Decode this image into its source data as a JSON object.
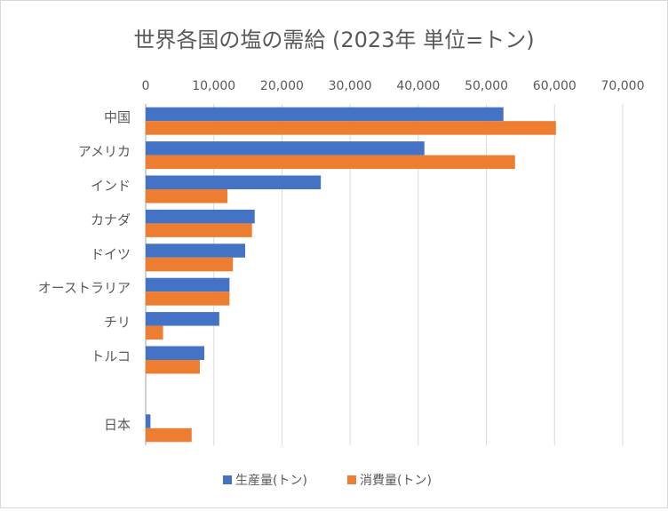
{
  "chart_data": {
    "type": "bar",
    "orientation": "horizontal",
    "title": "世界各国の塩の需給 (2023年 単位=トン)",
    "categories": [
      "中国",
      "アメリカ",
      "インド",
      "カナダ",
      "ドイツ",
      "オーストラリア",
      "チリ",
      "トルコ",
      "",
      "日本"
    ],
    "series": [
      {
        "name": "生産量(トン)",
        "color": "#4472c4",
        "values": [
          52500,
          40900,
          25700,
          16000,
          14600,
          12300,
          10800,
          8600,
          null,
          700
        ]
      },
      {
        "name": "消費量(トン)",
        "color": "#ed7d31",
        "values": [
          60200,
          54200,
          12000,
          15600,
          12800,
          12300,
          2550,
          7950,
          null,
          6750
        ]
      }
    ],
    "xlim": [
      0,
      70000
    ],
    "ticks": [
      "0",
      "10,000",
      "20,000",
      "30,000",
      "40,000",
      "50,000",
      "60,000",
      "70,000"
    ],
    "tick_values": [
      0,
      10000,
      20000,
      30000,
      40000,
      50000,
      60000,
      70000
    ],
    "axis_position": "top",
    "grid": true,
    "legend": "bottom"
  }
}
